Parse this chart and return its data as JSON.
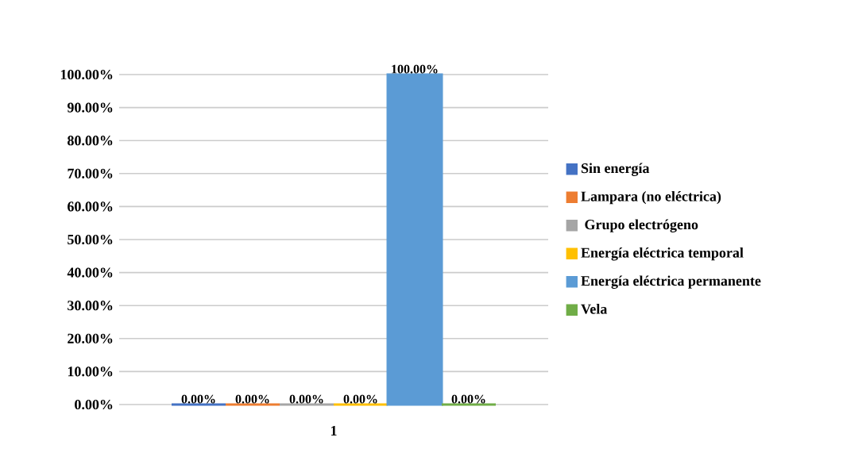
{
  "chart_data": {
    "type": "bar",
    "categories": [
      "1"
    ],
    "series": [
      {
        "name": "Sin energía",
        "color": "#4472c4",
        "values": [
          0
        ],
        "value_labels": [
          "0.00%"
        ]
      },
      {
        "name": "Lampara (no eléctrica)",
        "color": "#ed7d31",
        "values": [
          0
        ],
        "value_labels": [
          "0.00%"
        ]
      },
      {
        "name": " Grupo electrógeno",
        "color": "#a5a5a5",
        "values": [
          0
        ],
        "value_labels": [
          "0.00%"
        ]
      },
      {
        "name": "Energía eléctrica temporal",
        "color": "#ffc000",
        "values": [
          0
        ],
        "value_labels": [
          "0.00%"
        ]
      },
      {
        "name": "Energía eléctrica permanente",
        "color": "#5b9bd5",
        "values": [
          100
        ],
        "value_labels": [
          "100.00%"
        ]
      },
      {
        "name": "Vela",
        "color": "#70ad47",
        "values": [
          0
        ],
        "value_labels": [
          "0.00%"
        ]
      }
    ],
    "ylim": [
      0,
      100
    ],
    "yticks": [
      {
        "value": 0,
        "label": "0.00%"
      },
      {
        "value": 10,
        "label": "10.00%"
      },
      {
        "value": 20,
        "label": "20.00%"
      },
      {
        "value": 30,
        "label": "30.00%"
      },
      {
        "value": 40,
        "label": "40.00%"
      },
      {
        "value": 50,
        "label": "50.00%"
      },
      {
        "value": 60,
        "label": "60.00%"
      },
      {
        "value": 70,
        "label": "70.00%"
      },
      {
        "value": 80,
        "label": "80.00%"
      },
      {
        "value": 90,
        "label": "90.00%"
      },
      {
        "value": 100,
        "label": "100.00%"
      }
    ],
    "grid": "y",
    "legend": "right"
  }
}
